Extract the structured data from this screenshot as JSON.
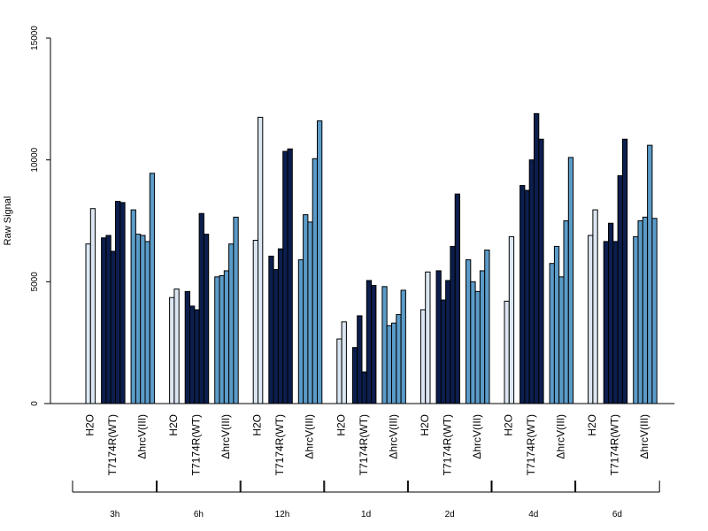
{
  "chart_data": {
    "type": "bar",
    "ylabel": "Raw Signal",
    "ylim": [
      0,
      15000
    ],
    "yticks": [
      0,
      5000,
      10000,
      15000
    ],
    "grid": false,
    "colors": {
      "H2O": "#dbe6f2",
      "T7174R(WT)": "#0c1e4d",
      "ΔhrcV(III)": "#5b9bc8"
    },
    "conditions": [
      "H2O",
      "T7174R(WT)",
      "ΔhrcV(III)"
    ],
    "timepoints": [
      "3h",
      "6h",
      "12h",
      "1d",
      "2d",
      "4d",
      "6d"
    ],
    "groups": [
      {
        "timepoint": "3h",
        "H2O": [
          6550,
          8000
        ],
        "T7174R(WT)": [
          6800,
          6900,
          6250,
          8300,
          8250
        ],
        "ΔhrcV(III)": [
          7950,
          6950,
          6900,
          6650,
          9450
        ]
      },
      {
        "timepoint": "6h",
        "H2O": [
          4350,
          4700
        ],
        "T7174R(WT)": [
          4600,
          4000,
          3850,
          7800,
          6950
        ],
        "ΔhrcV(III)": [
          5200,
          5250,
          5450,
          6550,
          7650
        ]
      },
      {
        "timepoint": "12h",
        "H2O": [
          6700,
          11750
        ],
        "T7174R(WT)": [
          6050,
          5500,
          6350,
          10350,
          10450
        ],
        "ΔhrcV(III)": [
          5900,
          7750,
          7450,
          10050,
          11600
        ]
      },
      {
        "timepoint": "1d",
        "H2O": [
          2650,
          3350
        ],
        "T7174R(WT)": [
          2300,
          3600,
          1300,
          5050,
          4850
        ],
        "ΔhrcV(III)": [
          4800,
          3200,
          3300,
          3650,
          4650
        ]
      },
      {
        "timepoint": "2d",
        "H2O": [
          3850,
          5400
        ],
        "T7174R(WT)": [
          5450,
          4250,
          5050,
          6450,
          8600
        ],
        "ΔhrcV(III)": [
          5900,
          5000,
          4600,
          5450,
          6300
        ]
      },
      {
        "timepoint": "4d",
        "H2O": [
          4200,
          6850
        ],
        "T7174R(WT)": [
          8950,
          8750,
          10000,
          11900,
          10850
        ],
        "ΔhrcV(III)": [
          5750,
          6450,
          5200,
          7500,
          10100
        ]
      },
      {
        "timepoint": "6d",
        "H2O": [
          6900,
          7950
        ],
        "T7174R(WT)": [
          6650,
          7400,
          6650,
          9350,
          10850
        ],
        "ΔhrcV(III)": [
          6850,
          7500,
          7650,
          10600,
          7600
        ]
      }
    ]
  }
}
